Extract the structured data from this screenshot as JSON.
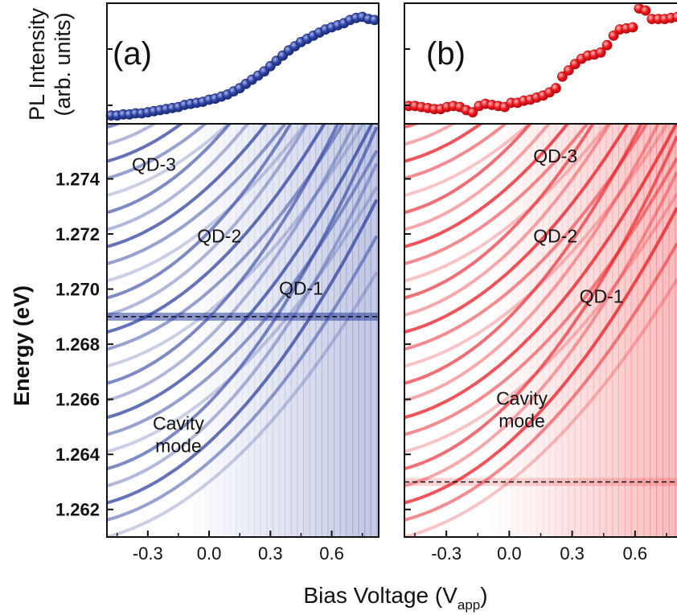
{
  "chart_data": [
    {
      "type": "scatter",
      "panel": "(a)",
      "title": "(a)",
      "ylabel": "PL Intensity\n(arb. units)",
      "xlim": [
        -0.5,
        0.83
      ],
      "ylim": [
        0,
        1.15
      ],
      "colors": {
        "marker": "#2b3f9e",
        "highlight": "#8fa0e0"
      },
      "series": [
        {
          "x": [
            -0.48,
            -0.45,
            -0.42,
            -0.39,
            -0.36,
            -0.33,
            -0.3,
            -0.27,
            -0.24,
            -0.21,
            -0.18,
            -0.15,
            -0.12,
            -0.09,
            -0.06,
            -0.03,
            0.0,
            0.03,
            0.06,
            0.09,
            0.12,
            0.15,
            0.18,
            0.21,
            0.24,
            0.27,
            0.3,
            0.33,
            0.36,
            0.39,
            0.42,
            0.45,
            0.48,
            0.51,
            0.54,
            0.57,
            0.6,
            0.63,
            0.66,
            0.69,
            0.72,
            0.75,
            0.78,
            0.81
          ],
          "y": [
            0.08,
            0.08,
            0.09,
            0.09,
            0.1,
            0.1,
            0.11,
            0.12,
            0.13,
            0.14,
            0.15,
            0.16,
            0.18,
            0.19,
            0.2,
            0.21,
            0.23,
            0.24,
            0.26,
            0.28,
            0.31,
            0.34,
            0.38,
            0.42,
            0.46,
            0.5,
            0.55,
            0.6,
            0.65,
            0.7,
            0.74,
            0.78,
            0.81,
            0.84,
            0.87,
            0.9,
            0.92,
            0.94,
            0.96,
            0.99,
            1.01,
            1.02,
            1.0,
            0.99
          ]
        }
      ]
    },
    {
      "type": "scatter",
      "panel": "(b)",
      "title": "(b)",
      "xlim": [
        -0.5,
        0.8
      ],
      "ylim": [
        0,
        1.15
      ],
      "colors": {
        "marker": "#e8141b",
        "highlight": "#ff9a9a"
      },
      "series": [
        {
          "x": [
            -0.48,
            -0.45,
            -0.42,
            -0.39,
            -0.36,
            -0.33,
            -0.3,
            -0.27,
            -0.24,
            -0.21,
            -0.18,
            -0.15,
            -0.12,
            -0.09,
            -0.06,
            -0.03,
            0.0,
            0.03,
            0.06,
            0.09,
            0.12,
            0.15,
            0.18,
            0.21,
            0.24,
            0.27,
            0.3,
            0.33,
            0.36,
            0.39,
            0.42,
            0.45,
            0.48,
            0.51,
            0.54,
            0.57,
            0.6,
            0.63,
            0.66,
            0.69,
            0.72,
            0.75,
            0.78
          ],
          "y": [
            0.17,
            0.17,
            0.16,
            0.15,
            0.14,
            0.14,
            0.16,
            0.17,
            0.16,
            0.13,
            0.11,
            0.17,
            0.19,
            0.18,
            0.17,
            0.16,
            0.2,
            0.2,
            0.22,
            0.23,
            0.25,
            0.27,
            0.3,
            0.34,
            0.45,
            0.51,
            0.57,
            0.62,
            0.65,
            0.66,
            0.68,
            0.75,
            0.84,
            0.9,
            0.91,
            0.92,
            1.1,
            1.08,
            1.0,
            1.0,
            1.0,
            1.01,
            1.02
          ]
        }
      ]
    },
    {
      "type": "heatmap",
      "panel": "(a)",
      "ylabel": "Energy (eV)",
      "xlim": [
        -0.5,
        0.83
      ],
      "ylim": [
        1.261,
        1.276
      ],
      "x_ticks": [
        "-0.3",
        "0.0",
        "0.3",
        "0.6"
      ],
      "x_tick_values": [
        -0.3,
        0.0,
        0.3,
        0.6
      ],
      "y_ticks": [
        "1.262",
        "1.264",
        "1.266",
        "1.268",
        "1.270",
        "1.272",
        "1.274"
      ],
      "y_tick_values": [
        1.262,
        1.264,
        1.266,
        1.268,
        1.27,
        1.272,
        1.274
      ],
      "colormap": [
        "#ffffff",
        "#2b3f9e"
      ],
      "cavity_mode_energy": 1.269,
      "annotations": [
        {
          "label": "QD-3",
          "x": -0.27,
          "y": 1.2743
        },
        {
          "label": "QD-2",
          "x": 0.05,
          "y": 1.2717
        },
        {
          "label": "QD-1",
          "x": 0.45,
          "y": 1.2698
        },
        {
          "label": "Cavity\nmode",
          "x": -0.15,
          "y": 1.2649
        }
      ]
    },
    {
      "type": "heatmap",
      "panel": "(b)",
      "xlim": [
        -0.5,
        0.8
      ],
      "ylim": [
        1.261,
        1.276
      ],
      "x_ticks": [
        "-0.3",
        "0.0",
        "0.3",
        "0.6"
      ],
      "x_tick_values": [
        -0.3,
        0.0,
        0.3,
        0.6
      ],
      "colormap": [
        "#ffffff",
        "#e8141b"
      ],
      "cavity_mode_energy": 1.263,
      "annotations": [
        {
          "label": "QD-3",
          "x": 0.22,
          "y": 1.2746
        },
        {
          "label": "QD-2",
          "x": 0.22,
          "y": 1.2717
        },
        {
          "label": "QD-1",
          "x": 0.44,
          "y": 1.2695
        },
        {
          "label": "Cavity\nmode",
          "x": 0.06,
          "y": 1.2658
        }
      ]
    }
  ],
  "shared": {
    "xlabel_main": "Bias Voltage (V",
    "xlabel_sub": "app",
    "xlabel_close": ")"
  }
}
